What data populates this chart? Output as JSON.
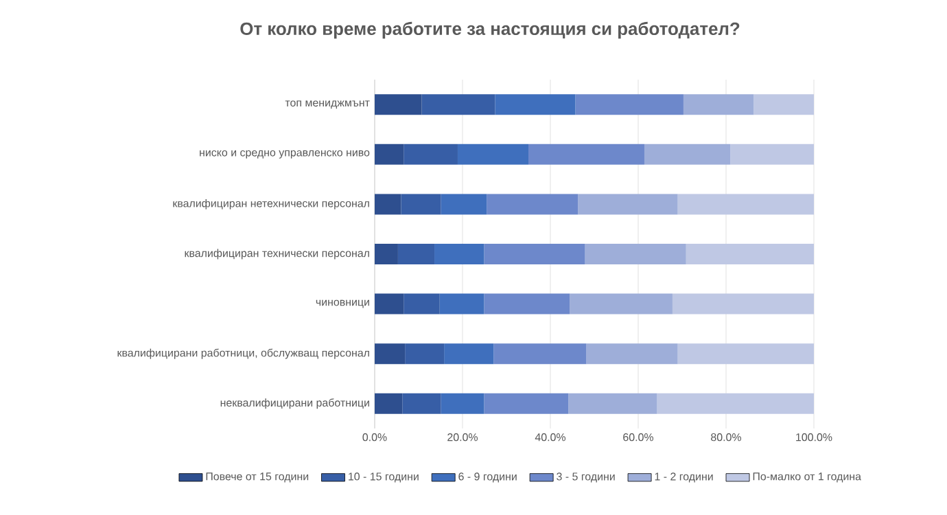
{
  "chart_data": {
    "type": "bar",
    "orientation": "horizontal",
    "stacked": true,
    "title": "От колко време работите за настоящия си работодател?",
    "categories": [
      "топ мениджмънт",
      "ниско и средно управленско ниво",
      "квалифициран нетехнически персонал",
      "квалифициран технически персонал",
      "чиновници",
      "квалифицирани работници, обслужващ персонал",
      "неквалифицирани работници"
    ],
    "series": [
      {
        "name": "Повече от 15 години",
        "color": "#2e4f8f",
        "values": [
          10.7,
          6.6,
          6.0,
          5.3,
          6.6,
          6.9,
          6.3
        ]
      },
      {
        "name": "10 - 15 години",
        "color": "#375ea6",
        "values": [
          16.7,
          12.3,
          9.1,
          8.3,
          8.2,
          8.9,
          8.8
        ]
      },
      {
        "name": "6 - 9 години",
        "color": "#3f6fbd",
        "values": [
          18.3,
          16.1,
          10.4,
          11.3,
          10.1,
          11.3,
          9.8
        ]
      },
      {
        "name": "3 - 5 години",
        "color": "#6d88cb",
        "values": [
          24.6,
          26.4,
          20.8,
          23.0,
          19.5,
          21.1,
          19.2
        ]
      },
      {
        "name": "1 - 2 години",
        "color": "#9eaed9",
        "values": [
          16.0,
          19.6,
          22.7,
          23.0,
          23.4,
          20.8,
          20.2
        ]
      },
      {
        "name": "По-малко от 1 година",
        "color": "#bfc8e4",
        "values": [
          13.7,
          19.0,
          31.0,
          29.1,
          32.2,
          31.0,
          35.7
        ]
      }
    ],
    "xlim": [
      0,
      100
    ],
    "xticks": [
      {
        "value": 0,
        "label": "0.0%"
      },
      {
        "value": 20,
        "label": "20.0%"
      },
      {
        "value": 40,
        "label": "40.0%"
      },
      {
        "value": 60,
        "label": "60.0%"
      },
      {
        "value": 80,
        "label": "80.0%"
      },
      {
        "value": 100,
        "label": "100.0%"
      }
    ],
    "grid": "x",
    "legend": "bottom"
  }
}
